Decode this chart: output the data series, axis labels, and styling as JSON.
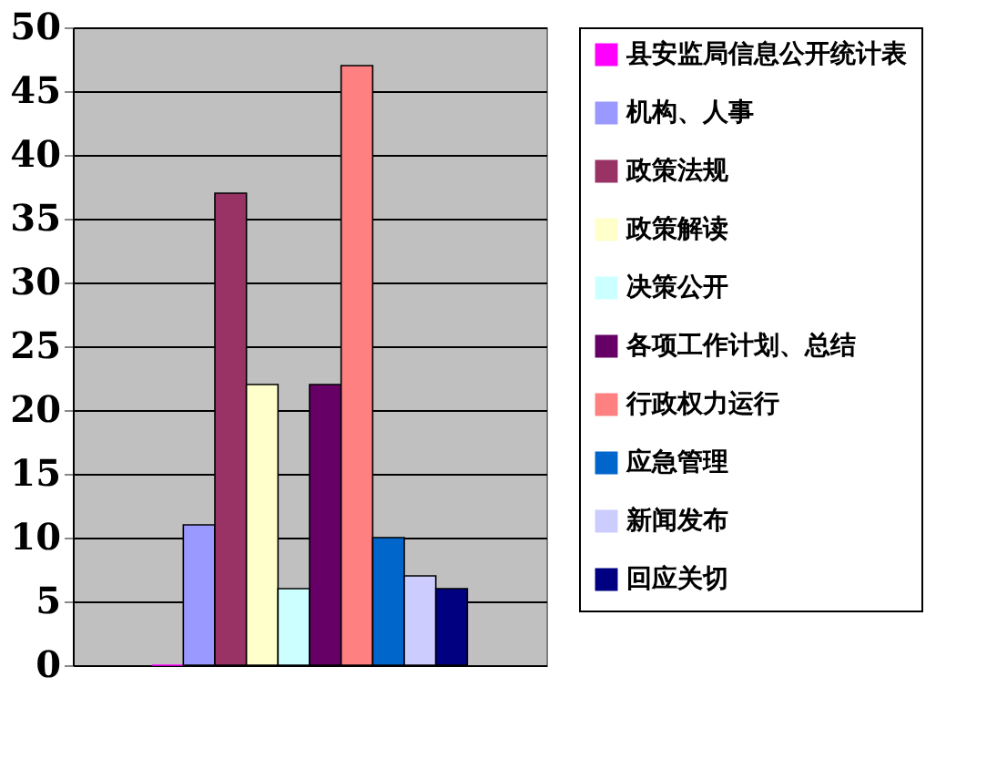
{
  "chart_data": {
    "type": "bar",
    "categories": [
      null
    ],
    "ylim": [
      0,
      50
    ],
    "yticks": [
      0,
      5,
      10,
      15,
      20,
      25,
      30,
      35,
      40,
      45,
      50
    ],
    "grid": "y",
    "legend": "right",
    "tick_labels": "y",
    "series": [
      {
        "name": "县安监局信息公开统计表",
        "color": "#ff00ff",
        "values": [
          0
        ]
      },
      {
        "name": "机构、人事",
        "color": "#9999ff",
        "values": [
          11
        ]
      },
      {
        "name": "政策法规",
        "color": "#993366",
        "values": [
          37
        ]
      },
      {
        "name": "政策解读",
        "color": "#ffffcc",
        "values": [
          22
        ]
      },
      {
        "name": "决策公开",
        "color": "#ccffff",
        "values": [
          6
        ]
      },
      {
        "name": "各项工作计划、总结",
        "color": "#660066",
        "values": [
          22
        ]
      },
      {
        "name": "行政权力运行",
        "color": "#ff8080",
        "values": [
          47
        ]
      },
      {
        "name": "应急管理",
        "color": "#0066cc",
        "values": [
          10
        ]
      },
      {
        "name": "新闻发布",
        "color": "#ccccff",
        "values": [
          7
        ]
      },
      {
        "name": "回应关切",
        "color": "#000080",
        "values": [
          6
        ]
      }
    ]
  }
}
